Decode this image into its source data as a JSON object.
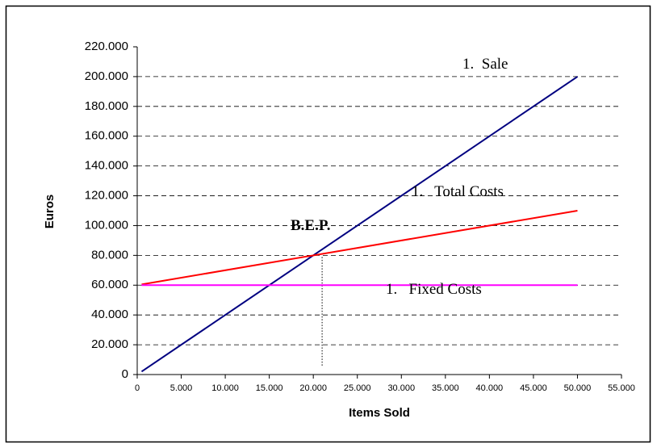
{
  "chart_data": {
    "type": "line",
    "xlabel": "Items Sold",
    "ylabel": "Euros",
    "x": [
      500,
      50000
    ],
    "series": [
      {
        "name": "1.  Sale",
        "color": "#000080",
        "values": [
          2000,
          200000
        ]
      },
      {
        "name": "1.   Total Costs",
        "color": "#ff0000",
        "values": [
          60500,
          110000
        ]
      },
      {
        "name": "1.   Fixed Costs",
        "color": "#ff00ff",
        "values": [
          60000,
          60000
        ]
      }
    ],
    "annotation": {
      "text": "B.E.P.",
      "x": 21000,
      "y": [
        6000,
        80000
      ]
    },
    "xlim": [
      0,
      55000
    ],
    "ylim": [
      0,
      220000
    ],
    "xticks": [
      0,
      {
        "value": 5000,
        "label": "5.000"
      },
      {
        "value": 10000,
        "label": "10.000"
      },
      {
        "value": 15000,
        "label": "15.000"
      },
      {
        "value": 20000,
        "label": "20.000"
      },
      {
        "value": 25000,
        "label": "25.000"
      },
      {
        "value": 30000,
        "label": "30.000"
      },
      {
        "value": 35000,
        "label": "35.000"
      },
      {
        "value": 40000,
        "label": "40.000"
      },
      {
        "value": 45000,
        "label": "45.000"
      },
      {
        "value": 50000,
        "label": "50.000"
      },
      {
        "value": 55000,
        "label": "55.000"
      }
    ],
    "yticks": [
      0,
      {
        "value": 20000,
        "label": "20.000"
      },
      {
        "value": 40000,
        "label": "40.000"
      },
      {
        "value": 60000,
        "label": "60.000"
      },
      {
        "value": 80000,
        "label": "80.000"
      },
      {
        "value": 100000,
        "label": "100.000"
      },
      {
        "value": 120000,
        "label": "120.000"
      },
      {
        "value": 140000,
        "label": "140.000"
      },
      {
        "value": 160000,
        "label": "160.000"
      },
      {
        "value": 180000,
        "label": "180.000"
      },
      {
        "value": 200000,
        "label": "200.000"
      },
      {
        "value": 220000,
        "label": "220.000"
      }
    ],
    "grid": true
  }
}
